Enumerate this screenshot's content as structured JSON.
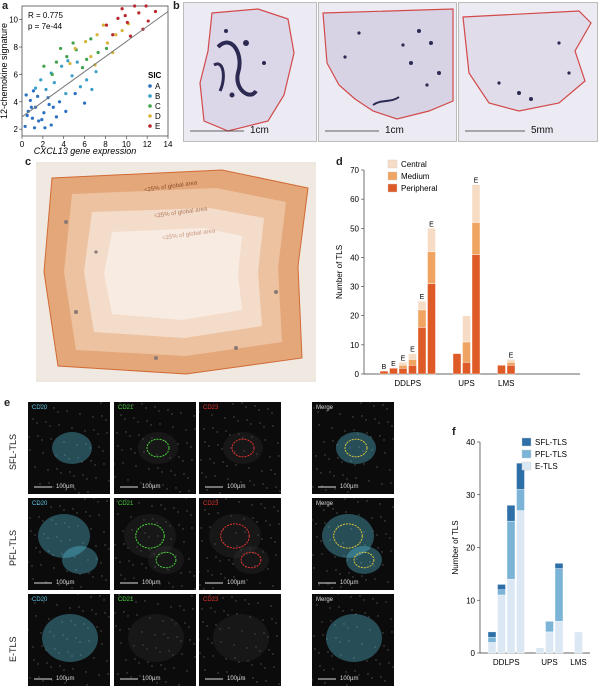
{
  "panels": {
    "a": {
      "letter": "a"
    },
    "b": {
      "letter": "b",
      "scale_labels": [
        "1cm",
        "1cm",
        "5mm"
      ]
    },
    "c": {
      "letter": "c",
      "zone_labels": [
        "<25% of global area",
        "<25% of global area",
        "<25% of global area"
      ]
    },
    "d": {
      "letter": "d"
    },
    "e": {
      "letter": "e",
      "rows": [
        "SFL-TLS",
        "PFL-TLS",
        "E-TLS"
      ],
      "channels": [
        "CD20",
        "CD21",
        "CD23",
        "Merge"
      ],
      "scale": "100µm",
      "colors": {
        "CD20": "#5bc8e6",
        "CD21": "#49d13a",
        "CD23": "#e3322e",
        "Merge": "#dddddd"
      }
    },
    "f": {
      "letter": "f"
    }
  },
  "chart_data": [
    {
      "id": "a",
      "type": "scatter",
      "xlabel": "CXCL13 gene expression",
      "ylabel": "12-chemokine signature",
      "xlim": [
        0,
        14
      ],
      "ylim": [
        1.5,
        11
      ],
      "xticks": [
        0,
        2,
        4,
        6,
        8,
        10,
        12,
        14
      ],
      "yticks": [
        2,
        4,
        6,
        8,
        10
      ],
      "annotations": [
        "R = 0.775",
        "p = 7e-44"
      ],
      "legend": {
        "title": "SIC",
        "position": "right"
      },
      "regression": {
        "x": [
          0,
          14
        ],
        "y": [
          2.9,
          10.6
        ]
      },
      "series": [
        {
          "name": "A",
          "color": "#2b6fc1",
          "points": [
            [
              0.3,
              2.2
            ],
            [
              0.6,
              3.3
            ],
            [
              1.0,
              2.8
            ],
            [
              1.3,
              3.6
            ],
            [
              1.6,
              2.6
            ],
            [
              0.8,
              4.1
            ],
            [
              2.1,
              3.2
            ],
            [
              2.5,
              4.3
            ],
            [
              1.2,
              2.1
            ],
            [
              3.0,
              3.6
            ],
            [
              1.9,
              2.7
            ],
            [
              0.5,
              3.0
            ],
            [
              2.8,
              2.3
            ],
            [
              3.6,
              4.0
            ],
            [
              1.5,
              4.4
            ],
            [
              4.2,
              3.3
            ],
            [
              0.9,
              3.6
            ],
            [
              2.2,
              2.1
            ],
            [
              5.1,
              4.6
            ],
            [
              3.3,
              2.9
            ],
            [
              1.1,
              4.8
            ],
            [
              6.0,
              3.9
            ],
            [
              0.4,
              4.5
            ],
            [
              2.6,
              3.8
            ]
          ]
        },
        {
          "name": "B",
          "color": "#3aa0c9",
          "points": [
            [
              1.3,
              5.0
            ],
            [
              2.3,
              4.9
            ],
            [
              3.1,
              5.4
            ],
            [
              4.2,
              4.6
            ],
            [
              4.8,
              5.9
            ],
            [
              5.6,
              5.1
            ],
            [
              2.8,
              6.1
            ],
            [
              3.8,
              6.6
            ],
            [
              6.2,
              5.6
            ],
            [
              7.1,
              6.2
            ],
            [
              5.3,
              6.9
            ],
            [
              1.8,
              5.6
            ],
            [
              6.7,
              4.9
            ],
            [
              4.4,
              7.0
            ]
          ]
        },
        {
          "name": "C",
          "color": "#3ea24a",
          "points": [
            [
              2.1,
              6.6
            ],
            [
              3.3,
              6.9
            ],
            [
              4.3,
              7.3
            ],
            [
              5.2,
              7.8
            ],
            [
              6.2,
              7.1
            ],
            [
              7.3,
              7.6
            ],
            [
              3.7,
              7.9
            ],
            [
              4.9,
              8.3
            ],
            [
              8.1,
              7.9
            ],
            [
              2.9,
              6.0
            ],
            [
              6.6,
              8.6
            ],
            [
              5.8,
              6.5
            ]
          ]
        },
        {
          "name": "D",
          "color": "#d6b53a",
          "points": [
            [
              5.1,
              7.9
            ],
            [
              6.1,
              8.4
            ],
            [
              7.2,
              8.9
            ],
            [
              8.2,
              8.3
            ],
            [
              9.0,
              8.9
            ],
            [
              6.6,
              7.3
            ],
            [
              7.8,
              9.6
            ],
            [
              9.6,
              9.2
            ],
            [
              4.6,
              6.8
            ],
            [
              8.7,
              7.6
            ],
            [
              10.2,
              9.7
            ],
            [
              7.0,
              6.7
            ]
          ]
        },
        {
          "name": "E",
          "color": "#b8282e",
          "points": [
            [
              8.1,
              9.6
            ],
            [
              9.2,
              10.1
            ],
            [
              10.1,
              9.8
            ],
            [
              11.2,
              10.5
            ],
            [
              12.1,
              9.9
            ],
            [
              9.6,
              10.8
            ],
            [
              10.8,
              11.0
            ],
            [
              11.6,
              9.3
            ],
            [
              12.8,
              10.6
            ],
            [
              8.7,
              8.9
            ],
            [
              10.4,
              8.8
            ],
            [
              11.9,
              11.0
            ],
            [
              9.9,
              10.3
            ]
          ]
        }
      ]
    },
    {
      "id": "d",
      "type": "bar",
      "stacked": true,
      "ylabel": "Number of TLS",
      "ylim": [
        0,
        70
      ],
      "yticks": [
        0,
        10,
        20,
        30,
        40,
        50,
        60,
        70
      ],
      "groups": [
        "DDLPS",
        "UPS",
        "LMS"
      ],
      "legend": {
        "position": "top-right"
      },
      "series_names": [
        "Central",
        "Medium",
        "Peripheral"
      ],
      "series_colors": [
        "#f6dcc4",
        "#f0a462",
        "#de5b27"
      ],
      "bars": [
        {
          "group": "DDLPS",
          "label": "B",
          "values": [
            0,
            0,
            1
          ]
        },
        {
          "group": "DDLPS",
          "label": "E",
          "values": [
            0,
            0,
            2
          ]
        },
        {
          "group": "DDLPS",
          "label": "E",
          "values": [
            1,
            1,
            2
          ]
        },
        {
          "group": "DDLPS",
          "label": "E",
          "values": [
            2,
            2,
            3
          ]
        },
        {
          "group": "DDLPS",
          "label": "E",
          "values": [
            3,
            6,
            16
          ]
        },
        {
          "group": "DDLPS",
          "label": "E",
          "values": [
            8,
            11,
            31
          ]
        },
        {
          "group": "UPS",
          "label": "",
          "values": [
            0,
            0,
            7
          ]
        },
        {
          "group": "UPS",
          "label": "",
          "values": [
            9,
            7,
            4
          ]
        },
        {
          "group": "UPS",
          "label": "E",
          "values": [
            13,
            11,
            41
          ]
        },
        {
          "group": "LMS",
          "label": "",
          "values": [
            0,
            0,
            3
          ]
        },
        {
          "group": "LMS",
          "label": "E",
          "values": [
            1,
            1,
            3
          ]
        }
      ]
    },
    {
      "id": "f",
      "type": "bar",
      "stacked": true,
      "ylabel": "Number of TLS",
      "ylim": [
        0,
        40
      ],
      "yticks": [
        0,
        10,
        20,
        30,
        40
      ],
      "groups": [
        "DDLPS",
        "UPS",
        "LMS"
      ],
      "legend": {
        "position": "top-right"
      },
      "series_names": [
        "SFL-TLS",
        "PFL-TLS",
        "E-TLS"
      ],
      "series_colors": [
        "#2f6fa8",
        "#7bb4d6",
        "#dbe8f4"
      ],
      "bars": [
        {
          "group": "DDLPS",
          "values": [
            1,
            1,
            2
          ]
        },
        {
          "group": "DDLPS",
          "values": [
            1,
            1,
            11
          ]
        },
        {
          "group": "DDLPS",
          "values": [
            3,
            11,
            14
          ]
        },
        {
          "group": "DDLPS",
          "values": [
            5,
            4,
            27
          ]
        },
        {
          "group": "UPS",
          "values": [
            0,
            0,
            1
          ]
        },
        {
          "group": "UPS",
          "values": [
            0,
            2,
            4
          ]
        },
        {
          "group": "UPS",
          "values": [
            1,
            10,
            6
          ]
        },
        {
          "group": "LMS",
          "values": [
            0,
            0,
            4
          ]
        }
      ]
    }
  ]
}
